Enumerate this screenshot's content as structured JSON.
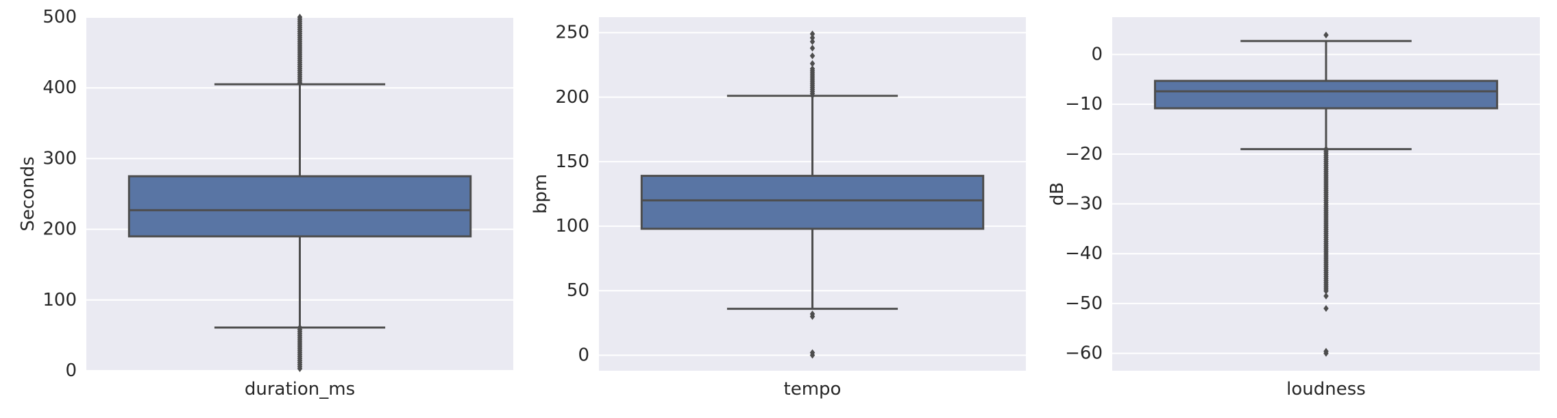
{
  "chart_data": [
    {
      "type": "box",
      "category": "duration_ms",
      "xlabel": "duration_ms",
      "ylabel": "Seconds",
      "ylim": [
        0,
        500
      ],
      "yticks": [
        0,
        100,
        200,
        300,
        400,
        500
      ],
      "box": {
        "whisker_low": 61,
        "q1": 190,
        "median": 227,
        "q3": 275,
        "whisker_high": 405
      },
      "outliers": {
        "dense_ranges": [
          [
            0,
            61
          ],
          [
            405,
            500
          ]
        ],
        "points": []
      },
      "grid": true
    },
    {
      "type": "box",
      "category": "tempo",
      "xlabel": "tempo",
      "ylabel": "bpm",
      "ylim": [
        -12,
        262
      ],
      "yticks": [
        0,
        50,
        100,
        150,
        200,
        250
      ],
      "box": {
        "whisker_low": 36,
        "q1": 98,
        "median": 120,
        "q3": 139,
        "whisker_high": 201
      },
      "outliers": {
        "dense_ranges": [
          [
            201,
            222
          ]
        ],
        "points": [
          30,
          32,
          0,
          2,
          226,
          232,
          238,
          243,
          246,
          249
        ]
      },
      "grid": true
    },
    {
      "type": "box",
      "category": "loudness",
      "xlabel": "loudness",
      "ylabel": "dB",
      "ylim": [
        -63.5,
        7.5
      ],
      "yticks": [
        0,
        -10,
        -20,
        -30,
        -40,
        -50,
        -60
      ],
      "box": {
        "whisker_low": -19,
        "q1": -10.8,
        "median": -7.4,
        "q3": -5.3,
        "whisker_high": 2.7
      },
      "outliers": {
        "dense_ranges": [
          [
            -47.5,
            -19
          ]
        ],
        "points": [
          3.9,
          -48.5,
          -51,
          -59.6,
          -60
        ]
      },
      "grid": true
    }
  ],
  "style": {
    "axes_bg": "#EAEAF2",
    "box_fill": "#5975A4",
    "line": "#4D4D4D",
    "grid": "#FFFFFF",
    "text": "#262626"
  }
}
